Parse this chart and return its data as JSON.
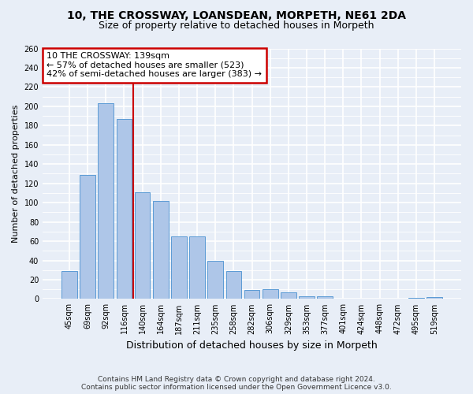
{
  "title1": "10, THE CROSSWAY, LOANSDEAN, MORPETH, NE61 2DA",
  "title2": "Size of property relative to detached houses in Morpeth",
  "xlabel": "Distribution of detached houses by size in Morpeth",
  "ylabel": "Number of detached properties",
  "categories": [
    "45sqm",
    "69sqm",
    "92sqm",
    "116sqm",
    "140sqm",
    "164sqm",
    "187sqm",
    "211sqm",
    "235sqm",
    "258sqm",
    "282sqm",
    "306sqm",
    "329sqm",
    "353sqm",
    "377sqm",
    "401sqm",
    "424sqm",
    "448sqm",
    "472sqm",
    "495sqm",
    "519sqm"
  ],
  "values": [
    29,
    129,
    203,
    187,
    111,
    102,
    65,
    65,
    40,
    29,
    9,
    10,
    7,
    3,
    3,
    0,
    0,
    0,
    0,
    1,
    2
  ],
  "bar_color": "#aec6e8",
  "bar_edge_color": "#5b9bd5",
  "annotation_text_line1": "10 THE CROSSWAY: 139sqm",
  "annotation_text_line2": "← 57% of detached houses are smaller (523)",
  "annotation_text_line3": "42% of semi-detached houses are larger (383) →",
  "annotation_box_color": "#ffffff",
  "annotation_box_edge": "#cc0000",
  "vline_color": "#cc0000",
  "footer1": "Contains HM Land Registry data © Crown copyright and database right 2024.",
  "footer2": "Contains public sector information licensed under the Open Government Licence v3.0.",
  "ylim": [
    0,
    260
  ],
  "background_color": "#e8eef7",
  "grid_color": "#ffffff",
  "title_fontsize": 10,
  "subtitle_fontsize": 9,
  "ylabel_fontsize": 8,
  "xlabel_fontsize": 9,
  "tick_fontsize": 7,
  "footer_fontsize": 6.5,
  "ann_fontsize": 8
}
